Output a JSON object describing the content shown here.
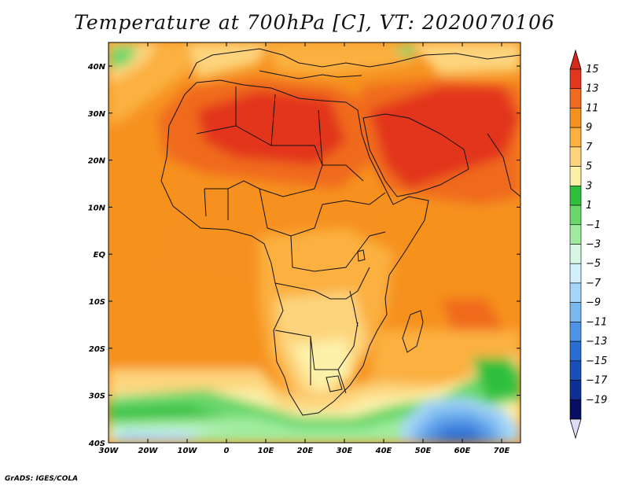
{
  "title": "Temperature at 700hPa [C], VT: 2020070106",
  "credit": "GrADS: IGES/COLA",
  "map": {
    "lon_ticks": [
      "30W",
      "20W",
      "10W",
      "0",
      "10E",
      "20E",
      "30E",
      "40E",
      "50E",
      "60E",
      "70E"
    ],
    "lat_ticks": [
      "40N",
      "30N",
      "20N",
      "10N",
      "EQ",
      "10S",
      "20S",
      "30S",
      "40S"
    ]
  },
  "colorbar": {
    "labels": [
      "15",
      "13",
      "11",
      "9",
      "7",
      "5",
      "3",
      "1",
      "−1",
      "−3",
      "−5",
      "−7",
      "−9",
      "−11",
      "−13",
      "−15",
      "−17",
      "−19"
    ],
    "colors": [
      "#e2361e",
      "#f06a1f",
      "#f6911f",
      "#fbb040",
      "#fdd47d",
      "#fdf1a9",
      "#2fbf3c",
      "#69d76c",
      "#a0ec9e",
      "#d8f8e6",
      "#d2f0fb",
      "#a6d6f7",
      "#7ab8f0",
      "#4f93e6",
      "#2b6ed2",
      "#1a4fb8",
      "#0e2f94",
      "#070f62"
    ],
    "top_arrow_color": "#d42a17",
    "bottom_arrow_color": "#dcdcf6"
  }
}
